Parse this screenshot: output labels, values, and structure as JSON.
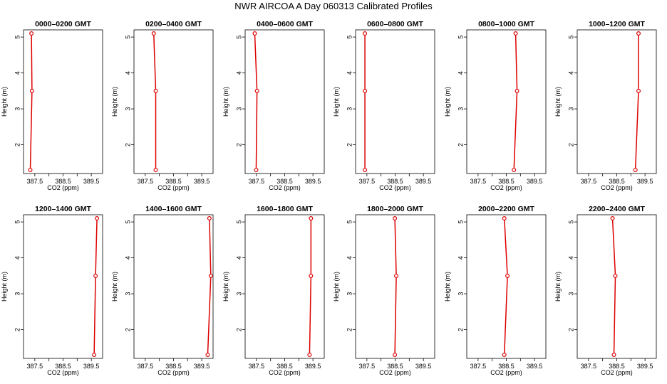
{
  "title": "NWR AIRCOA A  Day 060313  Calibrated Profiles",
  "colors": {
    "profile": "#dd0000",
    "axis": "#000000"
  },
  "chart_data": [
    {
      "type": "line",
      "title": "0000–0200 GMT",
      "xlabel": "CO2 (ppm)",
      "ylabel": "Height (m)",
      "xlim": [
        387.1,
        389.9
      ],
      "ylim": [
        1.2,
        5.2
      ],
      "x_ticks": [
        387.5,
        388.0,
        388.5,
        389.0,
        389.5
      ],
      "x_tick_labels": [
        "387.5",
        "",
        "388.5",
        "",
        "389.5"
      ],
      "y_ticks": [
        2,
        3,
        4,
        5
      ],
      "y_tick_labels": [
        "2",
        "3",
        "4",
        "5"
      ],
      "series": [
        {
          "x": [
            387.34,
            387.4,
            387.38
          ],
          "y": [
            1.3,
            3.5,
            5.1
          ]
        }
      ]
    },
    {
      "type": "line",
      "title": "0200–0400 GMT",
      "xlabel": "CO2 (ppm)",
      "ylabel": "Height (m)",
      "xlim": [
        387.1,
        389.9
      ],
      "ylim": [
        1.2,
        5.2
      ],
      "x_ticks": [
        387.5,
        388.0,
        388.5,
        389.0,
        389.5
      ],
      "x_tick_labels": [
        "387.5",
        "",
        "388.5",
        "",
        "389.5"
      ],
      "y_ticks": [
        2,
        3,
        4,
        5
      ],
      "y_tick_labels": [
        "2",
        "3",
        "4",
        "5"
      ],
      "series": [
        {
          "x": [
            387.87,
            387.87,
            387.8
          ],
          "y": [
            1.3,
            3.5,
            5.1
          ]
        }
      ]
    },
    {
      "type": "line",
      "title": "0400–0600 GMT",
      "xlabel": "CO2 (ppm)",
      "ylabel": "Height (m)",
      "xlim": [
        387.1,
        389.9
      ],
      "ylim": [
        1.2,
        5.2
      ],
      "x_ticks": [
        387.5,
        388.0,
        388.5,
        389.0,
        389.5
      ],
      "x_tick_labels": [
        "387.5",
        "",
        "388.5",
        "",
        "389.5"
      ],
      "y_ticks": [
        2,
        3,
        4,
        5
      ],
      "y_tick_labels": [
        "2",
        "3",
        "4",
        "5"
      ],
      "series": [
        {
          "x": [
            387.49,
            387.52,
            387.44
          ],
          "y": [
            1.3,
            3.5,
            5.1
          ]
        }
      ]
    },
    {
      "type": "line",
      "title": "0600–0800 GMT",
      "xlabel": "CO2 (ppm)",
      "ylabel": "Height (m)",
      "xlim": [
        387.1,
        389.9
      ],
      "ylim": [
        1.2,
        5.2
      ],
      "x_ticks": [
        387.5,
        388.0,
        388.5,
        389.0,
        389.5
      ],
      "x_tick_labels": [
        "387.5",
        "",
        "388.5",
        "",
        "389.5"
      ],
      "y_ticks": [
        2,
        3,
        4,
        5
      ],
      "y_tick_labels": [
        "2",
        "3",
        "4",
        "5"
      ],
      "series": [
        {
          "x": [
            387.43,
            387.43,
            387.43
          ],
          "y": [
            1.3,
            3.5,
            5.1
          ]
        }
      ]
    },
    {
      "type": "line",
      "title": "0800–1000 GMT",
      "xlabel": "CO2 (ppm)",
      "ylabel": "Height (m)",
      "xlim": [
        387.1,
        389.9
      ],
      "ylim": [
        1.2,
        5.2
      ],
      "x_ticks": [
        387.5,
        388.0,
        388.5,
        389.0,
        389.5
      ],
      "x_tick_labels": [
        "387.5",
        "",
        "388.5",
        "",
        "389.5"
      ],
      "y_ticks": [
        2,
        3,
        4,
        5
      ],
      "y_tick_labels": [
        "2",
        "3",
        "4",
        "5"
      ],
      "series": [
        {
          "x": [
            388.77,
            388.88,
            388.83
          ],
          "y": [
            1.3,
            3.5,
            5.1
          ]
        }
      ]
    },
    {
      "type": "line",
      "title": "1000–1200 GMT",
      "xlabel": "CO2 (ppm)",
      "ylabel": "Height (m)",
      "xlim": [
        387.1,
        389.9
      ],
      "ylim": [
        1.2,
        5.2
      ],
      "x_ticks": [
        387.5,
        388.0,
        388.5,
        389.0,
        389.5
      ],
      "x_tick_labels": [
        "387.5",
        "",
        "388.5",
        "",
        "389.5"
      ],
      "y_ticks": [
        2,
        3,
        4,
        5
      ],
      "y_tick_labels": [
        "2",
        "3",
        "4",
        "5"
      ],
      "series": [
        {
          "x": [
            389.16,
            389.27,
            389.27
          ],
          "y": [
            1.3,
            3.5,
            5.1
          ]
        }
      ]
    },
    {
      "type": "line",
      "title": "1200–1400 GMT",
      "xlabel": "CO2 (ppm)",
      "ylabel": "Height (m)",
      "xlim": [
        387.1,
        389.9
      ],
      "ylim": [
        1.2,
        5.2
      ],
      "x_ticks": [
        387.5,
        388.0,
        388.5,
        389.0,
        389.5
      ],
      "x_tick_labels": [
        "387.5",
        "",
        "388.5",
        "",
        "389.5"
      ],
      "y_ticks": [
        2,
        3,
        4,
        5
      ],
      "y_tick_labels": [
        "2",
        "3",
        "4",
        "5"
      ],
      "series": [
        {
          "x": [
            389.6,
            389.65,
            389.7
          ],
          "y": [
            1.3,
            3.5,
            5.1
          ]
        }
      ]
    },
    {
      "type": "line",
      "title": "1400–1600 GMT",
      "xlabel": "CO2 (ppm)",
      "ylabel": "Height (m)",
      "xlim": [
        387.1,
        389.9
      ],
      "ylim": [
        1.2,
        5.2
      ],
      "x_ticks": [
        387.5,
        388.0,
        388.5,
        389.0,
        389.5
      ],
      "x_tick_labels": [
        "387.5",
        "",
        "388.5",
        "",
        "389.5"
      ],
      "y_ticks": [
        2,
        3,
        4,
        5
      ],
      "y_tick_labels": [
        "2",
        "3",
        "4",
        "5"
      ],
      "series": [
        {
          "x": [
            389.71,
            389.82,
            389.77
          ],
          "y": [
            1.3,
            3.5,
            5.1
          ]
        }
      ]
    },
    {
      "type": "line",
      "title": "1600–1800 GMT",
      "xlabel": "CO2 (ppm)",
      "ylabel": "Height (m)",
      "xlim": [
        387.1,
        389.9
      ],
      "ylim": [
        1.2,
        5.2
      ],
      "x_ticks": [
        387.5,
        388.0,
        388.5,
        389.0,
        389.5
      ],
      "x_tick_labels": [
        "387.5",
        "",
        "388.5",
        "",
        "389.5"
      ],
      "y_ticks": [
        2,
        3,
        4,
        5
      ],
      "y_tick_labels": [
        "2",
        "3",
        "4",
        "5"
      ],
      "series": [
        {
          "x": [
            389.38,
            389.43,
            389.43
          ],
          "y": [
            1.3,
            3.5,
            5.1
          ]
        }
      ]
    },
    {
      "type": "line",
      "title": "1800–2000 GMT",
      "xlabel": "CO2 (ppm)",
      "ylabel": "Height (m)",
      "xlim": [
        387.1,
        389.9
      ],
      "ylim": [
        1.2,
        5.2
      ],
      "x_ticks": [
        387.5,
        388.0,
        388.5,
        389.0,
        389.5
      ],
      "x_tick_labels": [
        "387.5",
        "",
        "388.5",
        "",
        "389.5"
      ],
      "y_ticks": [
        2,
        3,
        4,
        5
      ],
      "y_tick_labels": [
        "2",
        "3",
        "4",
        "5"
      ],
      "series": [
        {
          "x": [
            388.49,
            388.54,
            388.49
          ],
          "y": [
            1.3,
            3.5,
            5.1
          ]
        }
      ]
    },
    {
      "type": "line",
      "title": "2000–2200 GMT",
      "xlabel": "CO2 (ppm)",
      "ylabel": "Height (m)",
      "xlim": [
        387.1,
        389.9
      ],
      "ylim": [
        1.2,
        5.2
      ],
      "x_ticks": [
        387.5,
        388.0,
        388.5,
        389.0,
        389.5
      ],
      "x_tick_labels": [
        "387.5",
        "",
        "388.5",
        "",
        "389.5"
      ],
      "y_ticks": [
        2,
        3,
        4,
        5
      ],
      "y_tick_labels": [
        "2",
        "3",
        "4",
        "5"
      ],
      "series": [
        {
          "x": [
            388.43,
            388.54,
            388.43
          ],
          "y": [
            1.3,
            3.5,
            5.1
          ]
        }
      ]
    },
    {
      "type": "line",
      "title": "2200–2400 GMT",
      "xlabel": "CO2 (ppm)",
      "ylabel": "Height (m)",
      "xlim": [
        387.1,
        389.9
      ],
      "ylim": [
        1.2,
        5.2
      ],
      "x_ticks": [
        387.5,
        388.0,
        388.5,
        389.0,
        389.5
      ],
      "x_tick_labels": [
        "387.5",
        "",
        "388.5",
        "",
        "389.5"
      ],
      "y_ticks": [
        2,
        3,
        4,
        5
      ],
      "y_tick_labels": [
        "2",
        "3",
        "4",
        "5"
      ],
      "series": [
        {
          "x": [
            388.4,
            388.45,
            388.35
          ],
          "y": [
            1.3,
            3.5,
            5.1
          ]
        }
      ]
    }
  ]
}
